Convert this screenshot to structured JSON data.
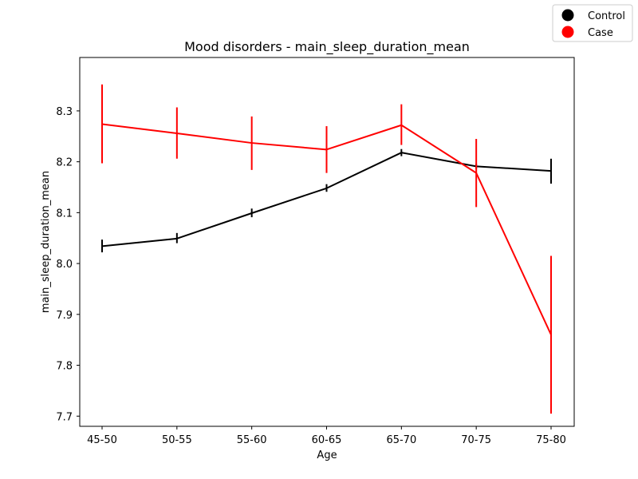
{
  "chart_data": {
    "type": "line",
    "title": "Mood disorders - main_sleep_duration_mean",
    "xlabel": "Age",
    "ylabel": "main_sleep_duration_mean",
    "categories": [
      "45-50",
      "50-55",
      "55-60",
      "60-65",
      "65-70",
      "70-75",
      "75-80"
    ],
    "ylim": [
      7.68,
      8.405
    ],
    "yticks": [
      7.7,
      7.8,
      7.9,
      8.0,
      8.1,
      8.2,
      8.3
    ],
    "ytick_labels": [
      "7.7",
      "7.8",
      "7.9",
      "8.0",
      "8.1",
      "8.2",
      "8.3"
    ],
    "grid": false,
    "legend_position": "top-right (outside plot)",
    "series": [
      {
        "name": "Control",
        "color": "#000000",
        "values": [
          8.034,
          8.049,
          8.099,
          8.148,
          8.218,
          8.191,
          8.182
        ],
        "err_low": [
          8.022,
          8.04,
          8.091,
          8.141,
          8.211,
          8.186,
          8.157
        ],
        "err_high": [
          8.047,
          8.06,
          8.108,
          8.156,
          8.225,
          8.196,
          8.206
        ]
      },
      {
        "name": "Case",
        "color": "#ff0000",
        "values": [
          8.274,
          8.256,
          8.237,
          8.224,
          8.272,
          8.178,
          7.86
        ],
        "err_low": [
          8.197,
          8.206,
          8.184,
          8.178,
          8.233,
          8.111,
          7.705
        ],
        "err_high": [
          8.352,
          8.307,
          8.289,
          8.27,
          8.313,
          8.245,
          8.015
        ]
      }
    ]
  }
}
